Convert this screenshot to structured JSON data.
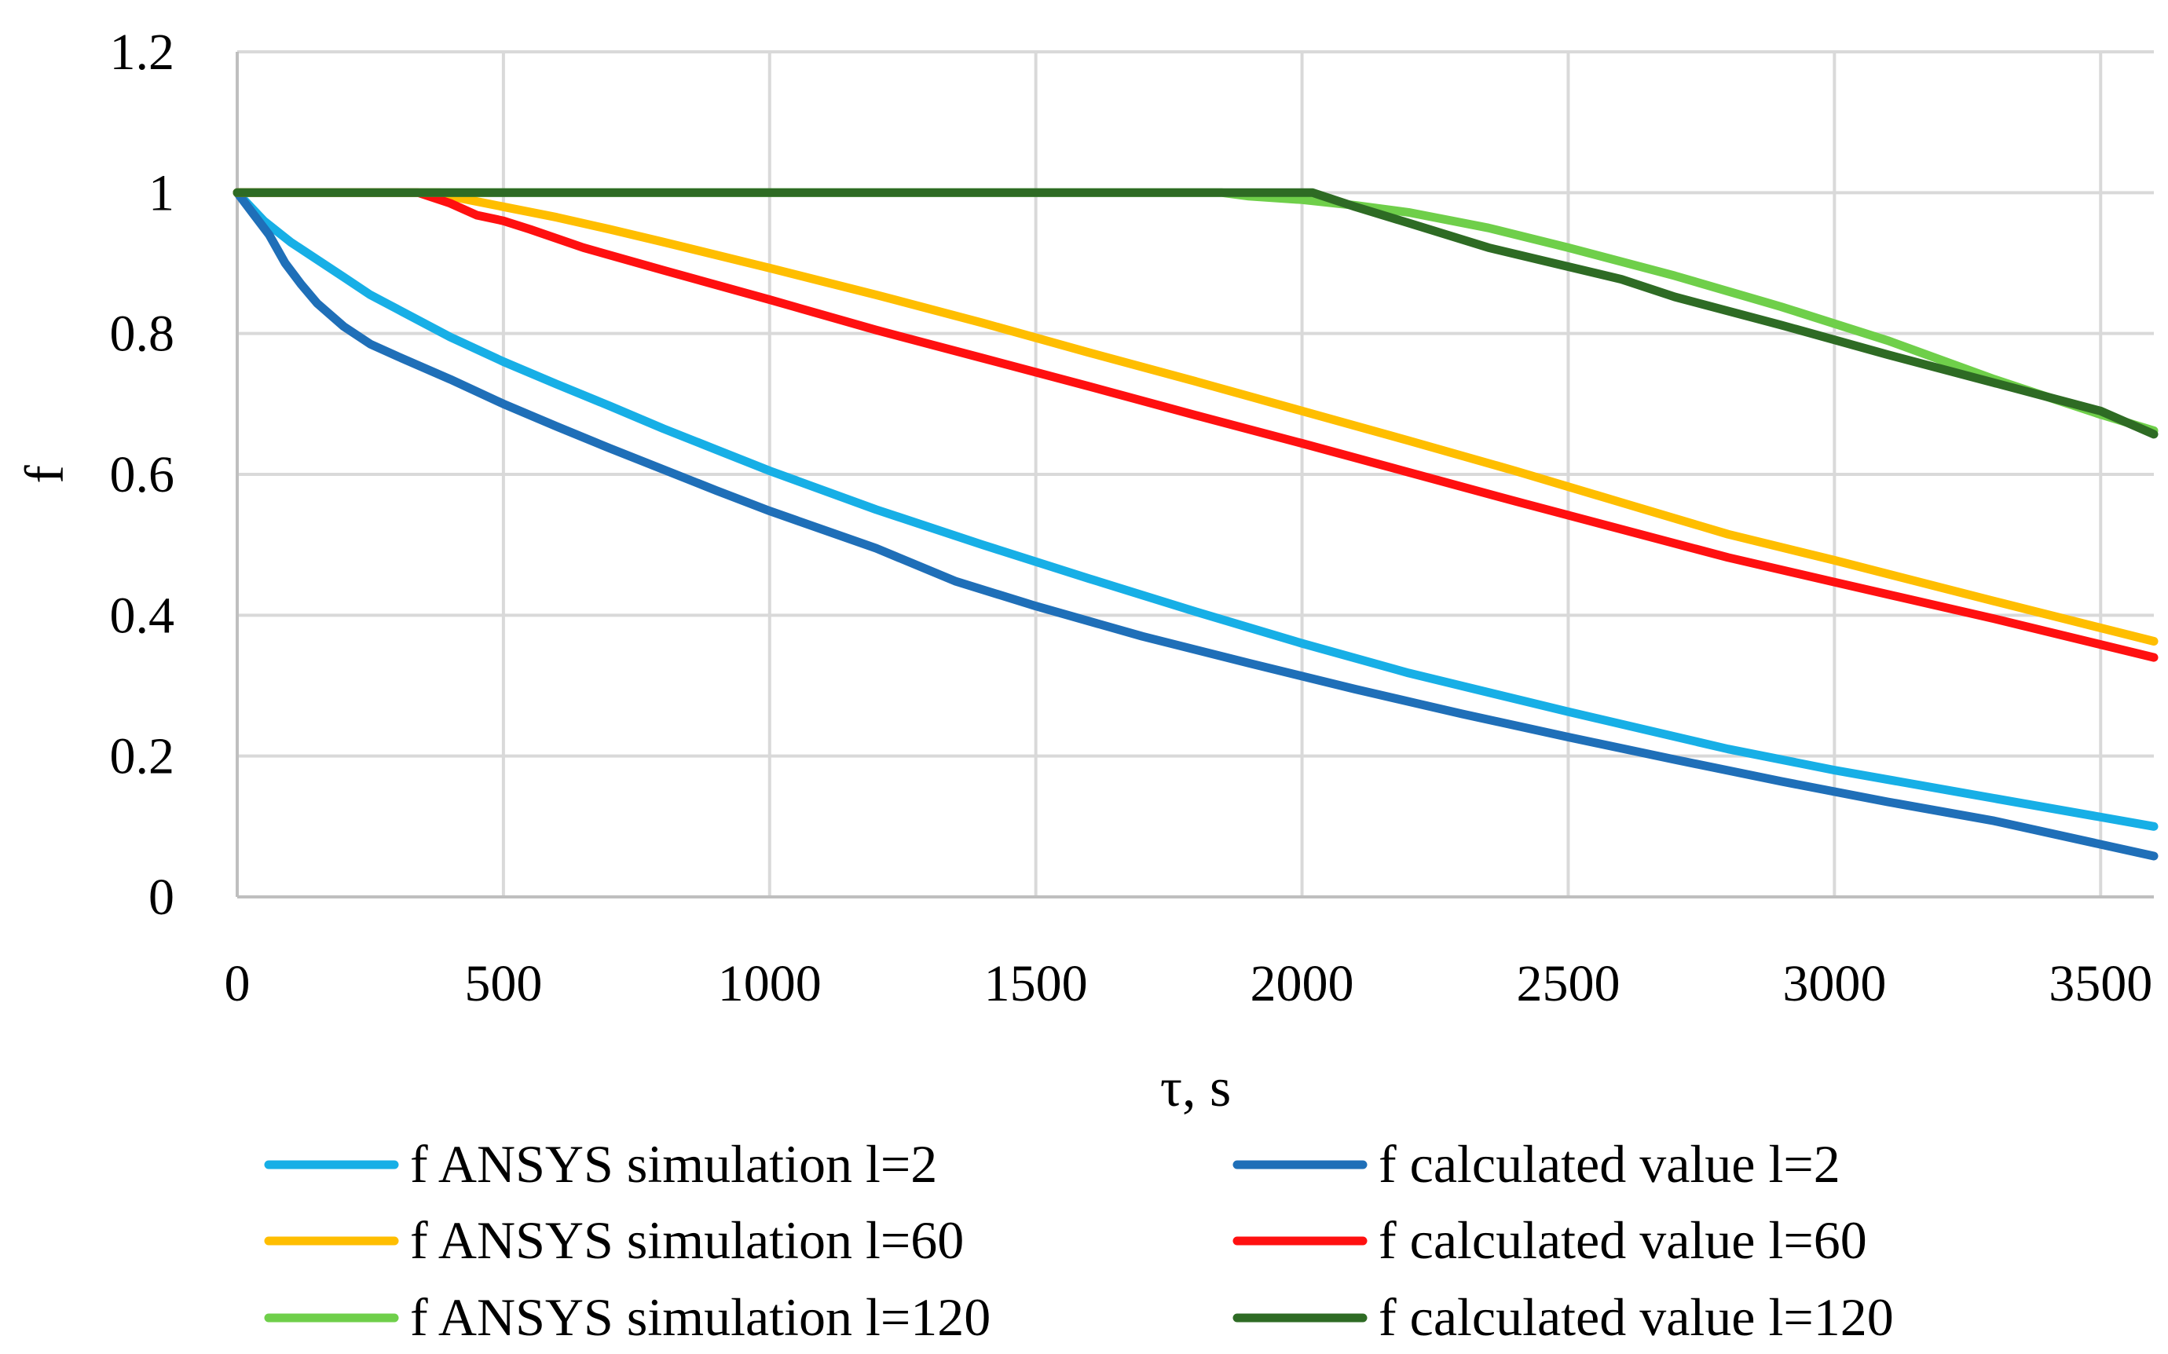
{
  "chart_data": {
    "type": "line",
    "title": "",
    "xlabel": "τ, s",
    "ylabel": "f",
    "xlim": [
      0,
      3600
    ],
    "ylim": [
      0,
      1.2
    ],
    "grid": true,
    "legend_position": "bottom",
    "x_ticks": [
      {
        "value": 0,
        "label": "0"
      },
      {
        "value": 500,
        "label": "500"
      },
      {
        "value": 1000,
        "label": "1000"
      },
      {
        "value": 1500,
        "label": "1500"
      },
      {
        "value": 2000,
        "label": "2000"
      },
      {
        "value": 2500,
        "label": "2500"
      },
      {
        "value": 3000,
        "label": "3000"
      },
      {
        "value": 3500,
        "label": "3500"
      }
    ],
    "y_ticks": [
      {
        "value": 0,
        "label": "0"
      },
      {
        "value": 0.2,
        "label": "0.2"
      },
      {
        "value": 0.4,
        "label": "0.4"
      },
      {
        "value": 0.6,
        "label": "0.6"
      },
      {
        "value": 0.8,
        "label": "0.8"
      },
      {
        "value": 1,
        "label": "1"
      },
      {
        "value": 1.2,
        "label": "1.2"
      }
    ],
    "series": [
      {
        "name": "f ANSYS simulation l=2",
        "color": "#17AFE6",
        "points": [
          [
            0,
            1
          ],
          [
            50,
            0.96
          ],
          [
            100,
            0.93
          ],
          [
            150,
            0.905
          ],
          [
            200,
            0.88
          ],
          [
            250,
            0.855
          ],
          [
            300,
            0.835
          ],
          [
            400,
            0.795
          ],
          [
            500,
            0.76
          ],
          [
            600,
            0.728
          ],
          [
            700,
            0.697
          ],
          [
            800,
            0.665
          ],
          [
            900,
            0.635
          ],
          [
            1000,
            0.605
          ],
          [
            1200,
            0.55
          ],
          [
            1400,
            0.5
          ],
          [
            1600,
            0.452
          ],
          [
            1800,
            0.405
          ],
          [
            2000,
            0.36
          ],
          [
            2200,
            0.318
          ],
          [
            2500,
            0.263
          ],
          [
            2800,
            0.21
          ],
          [
            3000,
            0.18
          ],
          [
            3300,
            0.14
          ],
          [
            3600,
            0.1
          ]
        ]
      },
      {
        "name": "f calculated value l=2",
        "color": "#1F6FB8",
        "points": [
          [
            0,
            1
          ],
          [
            30,
            0.97
          ],
          [
            60,
            0.94
          ],
          [
            90,
            0.9
          ],
          [
            120,
            0.87
          ],
          [
            150,
            0.843
          ],
          [
            200,
            0.81
          ],
          [
            250,
            0.785
          ],
          [
            300,
            0.768
          ],
          [
            400,
            0.735
          ],
          [
            500,
            0.7
          ],
          [
            600,
            0.668
          ],
          [
            700,
            0.637
          ],
          [
            800,
            0.607
          ],
          [
            900,
            0.577
          ],
          [
            1000,
            0.548
          ],
          [
            1200,
            0.495
          ],
          [
            1350,
            0.448
          ],
          [
            1500,
            0.413
          ],
          [
            1700,
            0.37
          ],
          [
            1900,
            0.332
          ],
          [
            2100,
            0.295
          ],
          [
            2300,
            0.26
          ],
          [
            2500,
            0.227
          ],
          [
            2700,
            0.195
          ],
          [
            2900,
            0.164
          ],
          [
            3100,
            0.135
          ],
          [
            3300,
            0.108
          ],
          [
            3600,
            0.058
          ]
        ]
      },
      {
        "name": "f ANSYS simulation l=60",
        "color": "#FFBE00",
        "points": [
          [
            0,
            1
          ],
          [
            380,
            1
          ],
          [
            400,
            0.995
          ],
          [
            500,
            0.98
          ],
          [
            600,
            0.965
          ],
          [
            700,
            0.948
          ],
          [
            800,
            0.93
          ],
          [
            1000,
            0.893
          ],
          [
            1200,
            0.855
          ],
          [
            1400,
            0.815
          ],
          [
            1600,
            0.773
          ],
          [
            1800,
            0.732
          ],
          [
            2000,
            0.69
          ],
          [
            2200,
            0.648
          ],
          [
            2400,
            0.605
          ],
          [
            2600,
            0.56
          ],
          [
            2800,
            0.515
          ],
          [
            3000,
            0.478
          ],
          [
            3300,
            0.42
          ],
          [
            3600,
            0.363
          ]
        ]
      },
      {
        "name": "f calculated value l=60",
        "color": "#FF1010",
        "points": [
          [
            0,
            1
          ],
          [
            340,
            1
          ],
          [
            400,
            0.985
          ],
          [
            450,
            0.968
          ],
          [
            500,
            0.96
          ],
          [
            550,
            0.948
          ],
          [
            650,
            0.922
          ],
          [
            800,
            0.89
          ],
          [
            1000,
            0.848
          ],
          [
            1200,
            0.805
          ],
          [
            1400,
            0.765
          ],
          [
            1600,
            0.725
          ],
          [
            1800,
            0.684
          ],
          [
            2000,
            0.644
          ],
          [
            2200,
            0.603
          ],
          [
            2400,
            0.562
          ],
          [
            2600,
            0.522
          ],
          [
            2800,
            0.482
          ],
          [
            3000,
            0.447
          ],
          [
            3300,
            0.395
          ],
          [
            3600,
            0.34
          ]
        ]
      },
      {
        "name": "f ANSYS simulation l=120",
        "color": "#6FCF4A",
        "points": [
          [
            0,
            1
          ],
          [
            1850,
            1
          ],
          [
            1900,
            0.995
          ],
          [
            2000,
            0.99
          ],
          [
            2100,
            0.982
          ],
          [
            2200,
            0.972
          ],
          [
            2350,
            0.95
          ],
          [
            2500,
            0.922
          ],
          [
            2700,
            0.882
          ],
          [
            2900,
            0.838
          ],
          [
            3100,
            0.79
          ],
          [
            3300,
            0.735
          ],
          [
            3500,
            0.685
          ],
          [
            3600,
            0.662
          ]
        ]
      },
      {
        "name": "f calculated value l=120",
        "color": "#2E6B24",
        "points": [
          [
            0,
            1
          ],
          [
            2020,
            1
          ],
          [
            2100,
            0.98
          ],
          [
            2200,
            0.957
          ],
          [
            2350,
            0.922
          ],
          [
            2500,
            0.895
          ],
          [
            2600,
            0.877
          ],
          [
            2700,
            0.852
          ],
          [
            2900,
            0.812
          ],
          [
            3100,
            0.77
          ],
          [
            3300,
            0.73
          ],
          [
            3500,
            0.69
          ],
          [
            3600,
            0.657
          ]
        ]
      }
    ]
  }
}
